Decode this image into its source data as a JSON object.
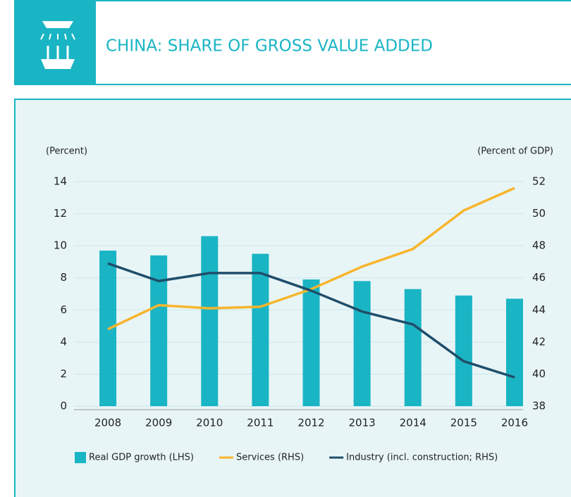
{
  "chart_data": {
    "type": "combo",
    "title": "CHINA: SHARE OF GROSS VALUE ADDED",
    "y_label": "(Percent)",
    "y2_label": "(Percent of GDP)",
    "categories": [
      "2008",
      "2009",
      "2010",
      "2011",
      "2012",
      "2013",
      "2014",
      "2015",
      "2016"
    ],
    "series": [
      {
        "name": "Real GDP growth (LHS)",
        "type": "bar",
        "axis": "y",
        "color": "#1ab5c4",
        "values": [
          9.7,
          9.4,
          10.6,
          9.5,
          7.9,
          7.8,
          7.3,
          6.9,
          6.7
        ]
      },
      {
        "name": "Services (RHS)",
        "type": "line",
        "axis": "y2",
        "color": "#f7b52c",
        "values": [
          42.8,
          44.3,
          44.1,
          44.2,
          45.3,
          46.7,
          47.8,
          50.2,
          51.6
        ]
      },
      {
        "name": "Industry (incl. construction; RHS)",
        "type": "line",
        "axis": "y2",
        "color": "#1f4e6b",
        "values": [
          46.9,
          45.8,
          46.3,
          46.3,
          45.2,
          43.9,
          43.1,
          40.8,
          39.8
        ]
      }
    ],
    "ylim": [
      0,
      14
    ],
    "yticks": [
      0,
      2,
      4,
      6,
      8,
      10,
      12,
      14
    ],
    "y2lim": [
      38,
      52
    ],
    "y2ticks": [
      38,
      40,
      42,
      44,
      46,
      48,
      50,
      52
    ],
    "grid": true,
    "legend": "bottom"
  }
}
